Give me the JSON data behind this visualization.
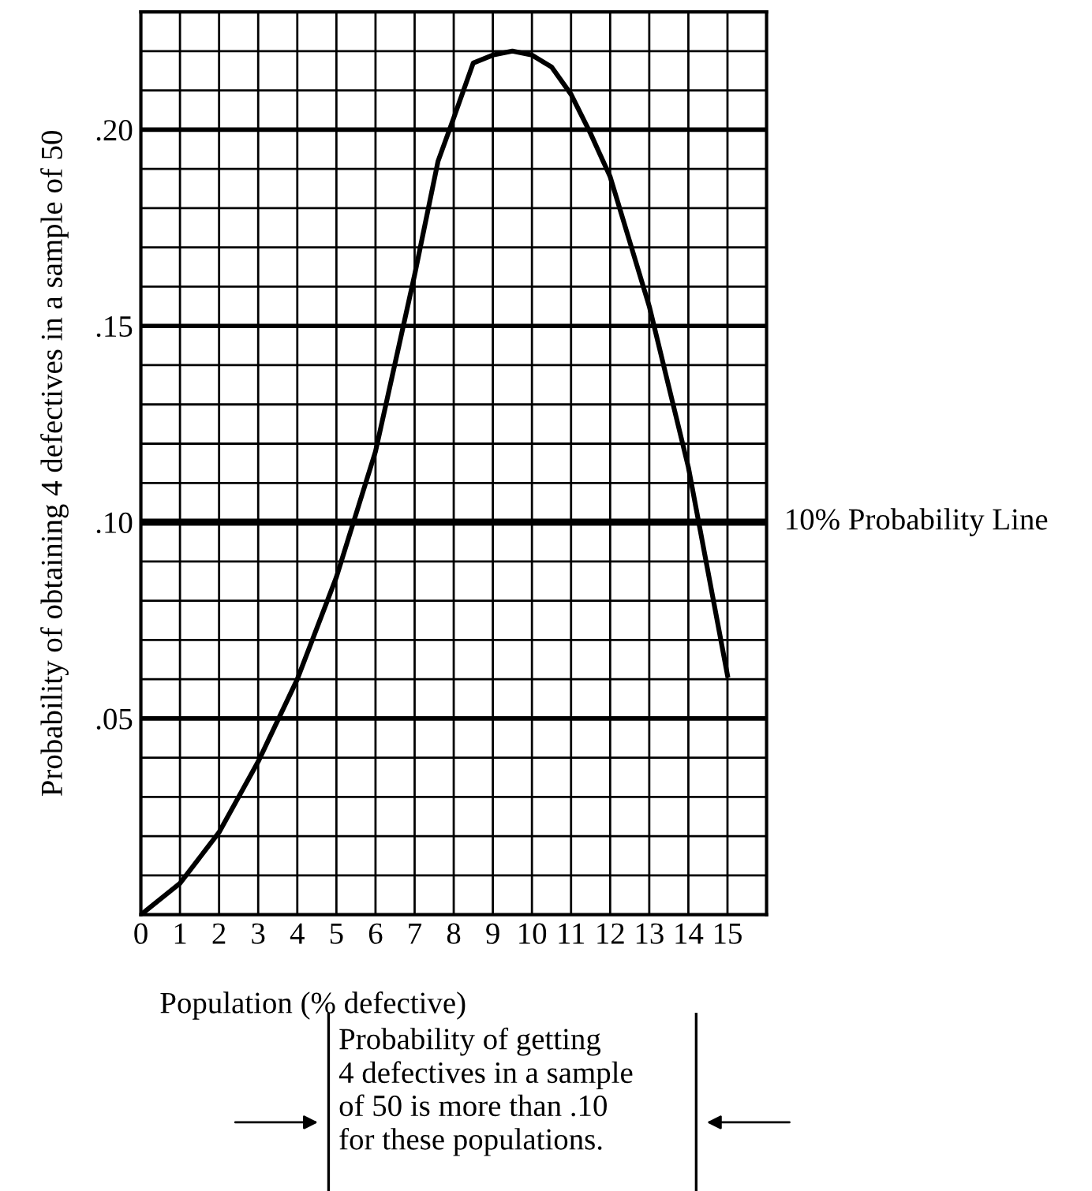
{
  "chart_data": {
    "type": "line",
    "xlabel": "Population (% defective)",
    "ylabel": "Probability of obtaining 4 defectives in a sample of 50",
    "series": [
      {
        "color": "#000000",
        "x": [
          0,
          1,
          2,
          3,
          4,
          5,
          6,
          7,
          7.6,
          8,
          8.5,
          9,
          9.5,
          10,
          10.5,
          11,
          11.5,
          12,
          13,
          14,
          15
        ],
        "values": [
          0.0,
          0.008,
          0.021,
          0.039,
          0.06,
          0.086,
          0.118,
          0.163,
          0.192,
          0.203,
          0.217,
          0.219,
          0.22,
          0.219,
          0.216,
          0.209,
          0.199,
          0.188,
          0.155,
          0.114,
          0.061
        ]
      }
    ],
    "xlim": [
      0,
      16
    ],
    "ylim": [
      0,
      0.23
    ],
    "xticks": [
      0,
      1,
      2,
      3,
      4,
      5,
      6,
      7,
      8,
      9,
      10,
      11,
      12,
      13,
      14,
      15,
      {
        "value": 16,
        "label": null
      }
    ],
    "yticks": [
      {
        "value": 0.01,
        "label": null
      },
      {
        "value": 0.02,
        "label": null
      },
      {
        "value": 0.03,
        "label": null
      },
      {
        "value": 0.04,
        "label": null
      },
      {
        "value": 0.05,
        "label": ".05"
      },
      {
        "value": 0.06,
        "label": null
      },
      {
        "value": 0.07,
        "label": null
      },
      {
        "value": 0.08,
        "label": null
      },
      {
        "value": 0.09,
        "label": null
      },
      {
        "value": 0.1,
        "label": ".10"
      },
      {
        "value": 0.11,
        "label": null
      },
      {
        "value": 0.12,
        "label": null
      },
      {
        "value": 0.13,
        "label": null
      },
      {
        "value": 0.14,
        "label": null
      },
      {
        "value": 0.15,
        "label": ".15"
      },
      {
        "value": 0.16,
        "label": null
      },
      {
        "value": 0.17,
        "label": null
      },
      {
        "value": 0.18,
        "label": null
      },
      {
        "value": 0.19,
        "label": null
      },
      {
        "value": 0.2,
        "label": ".20"
      },
      {
        "value": 0.21,
        "label": null
      },
      {
        "value": 0.22,
        "label": null
      },
      {
        "value": 0.23,
        "label": null
      }
    ],
    "grid": true,
    "ref_lines": [
      {
        "axis": "y",
        "value": 0.1,
        "label": "10% Probability Line",
        "color": "#000000"
      }
    ],
    "annotations": [
      "Probability of getting\n4 defectives in a sample\nof 50 is more than .10\nfor these populations."
    ]
  }
}
